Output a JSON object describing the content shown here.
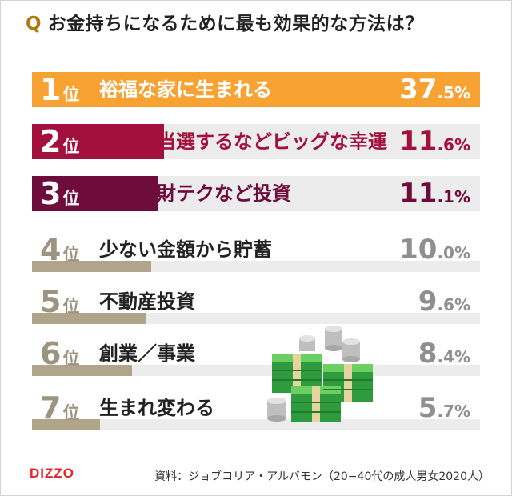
{
  "title": {
    "q": "Q",
    "text": "お金持ちになるために最も効果的な方法は？"
  },
  "chart_data": {
    "type": "bar",
    "orientation": "horizontal",
    "title": "お金持ちになるために最も効果的な方法は？",
    "xlim": [
      0,
      37.5
    ],
    "rank_suffix": "位",
    "unit": "%",
    "items": [
      {
        "rank": "1",
        "label": "裕福な家に生まれる",
        "value": 37.5,
        "int": "37",
        "dec": ".5%",
        "color": "#f7a233"
      },
      {
        "rank": "2",
        "label": "ロトに当選するなどビッグな幸運",
        "value": 11.6,
        "int": "11",
        "dec": ".6%",
        "color": "#a3103e"
      },
      {
        "rank": "3",
        "label": "株式、財テクなど投資",
        "value": 11.1,
        "int": "11",
        "dec": ".1%",
        "color": "#6e0c3c"
      },
      {
        "rank": "4",
        "label": "少ない金額から貯蓄",
        "value": 10.0,
        "int": "10",
        "dec": ".0%",
        "color": "#b0a48a"
      },
      {
        "rank": "5",
        "label": "不動産投資",
        "value": 9.6,
        "int": "9",
        "dec": ".6%",
        "color": "#b0a48a"
      },
      {
        "rank": "6",
        "label": "創業／事業",
        "value": 8.4,
        "int": "8",
        "dec": ".4%",
        "color": "#b0a48a"
      },
      {
        "rank": "7",
        "label": "生まれ変わる",
        "value": 5.7,
        "int": "5",
        "dec": ".7%",
        "color": "#b0a48a"
      }
    ]
  },
  "illustration": {
    "icon": "money-stacks-icon"
  },
  "footer": {
    "logo": "DIZZO",
    "source": "資料：ジョブコリア・アルバモン（20−40代の成人男女2020人）"
  }
}
